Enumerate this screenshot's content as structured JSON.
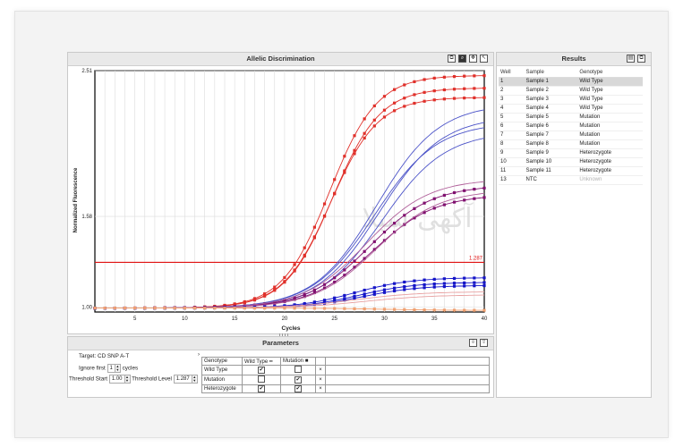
{
  "chart_panel": {
    "title": "Allelic Discrimination"
  },
  "results_panel": {
    "title": "Results",
    "columns": [
      "Well",
      "Sample",
      "Genotype"
    ],
    "rows": [
      {
        "well": "1",
        "sample": "Sample 1",
        "genotype": "Wild Type"
      },
      {
        "well": "2",
        "sample": "Sample 2",
        "genotype": "Wild Type"
      },
      {
        "well": "3",
        "sample": "Sample 3",
        "genotype": "Wild Type"
      },
      {
        "well": "4",
        "sample": "Sample 4",
        "genotype": "Wild Type"
      },
      {
        "well": "5",
        "sample": "Sample 5",
        "genotype": "Mutation"
      },
      {
        "well": "6",
        "sample": "Sample 6",
        "genotype": "Mutation"
      },
      {
        "well": "7",
        "sample": "Sample 7",
        "genotype": "Mutation"
      },
      {
        "well": "8",
        "sample": "Sample 8",
        "genotype": "Mutation"
      },
      {
        "well": "9",
        "sample": "Sample 9",
        "genotype": "Heterozygote"
      },
      {
        "well": "10",
        "sample": "Sample 10",
        "genotype": "Heterozygote"
      },
      {
        "well": "11",
        "sample": "Sample 11",
        "genotype": "Heterozygote"
      },
      {
        "well": "13",
        "sample": "NTC",
        "genotype": "Unknown"
      }
    ]
  },
  "parameters": {
    "title": "Parameters",
    "target_label": "Target:",
    "target_value": "CD SNP A-T",
    "ignore_first_label": "Ignore first",
    "ignore_first_value": "1",
    "cycles_label": "cycles",
    "threshold_start_label": "Threshold Start",
    "threshold_start_value": "1.00",
    "threshold_level_label": "Threshold Level",
    "threshold_level_value": "1.287",
    "genotype_header": "Genotype",
    "wild_type_header": "Wild Type",
    "mutation_header": "Mutation",
    "genotype_rows": [
      {
        "name": "Wild Type",
        "wild": true,
        "mutation": false
      },
      {
        "name": "Mutation",
        "wild": false,
        "mutation": true
      },
      {
        "name": "Heterozygote",
        "wild": true,
        "mutation": true
      }
    ],
    "remove_glyph": "×"
  },
  "watermark": "آکهی سبلا",
  "chart_data": {
    "type": "line",
    "xlabel": "Cycles",
    "ylabel": "Normalized Fluorescence",
    "xlim": [
      1,
      40
    ],
    "ylim": [
      0.97,
      2.51
    ],
    "x_ticks": [
      5,
      10,
      15,
      20,
      25,
      30,
      35,
      40
    ],
    "y_ticks": [
      1.0,
      1.58,
      2.51
    ],
    "y_tick_labels": [
      "1.00",
      "1.58",
      "2.51"
    ],
    "threshold": 1.287,
    "threshold_label": "1.287",
    "grid": true,
    "series": [
      {
        "color": "#e0302a",
        "marker": true,
        "top": 2.48,
        "mid": 24.5,
        "slope": 0.42
      },
      {
        "color": "#e0302a",
        "marker": true,
        "top": 2.4,
        "mid": 24.8,
        "slope": 0.42
      },
      {
        "color": "#e0302a",
        "marker": true,
        "top": 2.34,
        "mid": 24.6,
        "slope": 0.42
      },
      {
        "color": "#4a52c8",
        "marker": false,
        "top": 2.3,
        "mid": 29.2,
        "slope": 0.32
      },
      {
        "color": "#4a52c8",
        "marker": false,
        "top": 2.22,
        "mid": 29.5,
        "slope": 0.32
      },
      {
        "color": "#4a52c8",
        "marker": false,
        "top": 2.18,
        "mid": 29.0,
        "slope": 0.32
      },
      {
        "color": "#4a52c8",
        "marker": false,
        "top": 2.12,
        "mid": 29.8,
        "slope": 0.32
      },
      {
        "color": "#80106f",
        "marker": true,
        "top": 1.78,
        "mid": 28.5,
        "slope": 0.32
      },
      {
        "color": "#80106f",
        "marker": true,
        "top": 1.72,
        "mid": 28.8,
        "slope": 0.32
      },
      {
        "color": "#b0609a",
        "marker": false,
        "top": 1.82,
        "mid": 28.2,
        "slope": 0.32
      },
      {
        "color": "#b0609a",
        "marker": false,
        "top": 1.75,
        "mid": 29.2,
        "slope": 0.32
      },
      {
        "color": "#1414c8",
        "marker": true,
        "top": 1.19,
        "mid": 27.0,
        "slope": 0.35
      },
      {
        "color": "#1414c8",
        "marker": true,
        "top": 1.16,
        "mid": 27.5,
        "slope": 0.35
      },
      {
        "color": "#1414c8",
        "marker": true,
        "top": 1.14,
        "mid": 27.8,
        "slope": 0.35
      },
      {
        "color": "#e8a0a0",
        "marker": false,
        "top": 1.1,
        "mid": 27.0,
        "slope": 0.3
      },
      {
        "color": "#e8a0a0",
        "marker": false,
        "top": 1.08,
        "mid": 28.0,
        "slope": 0.3
      },
      {
        "color": "#f0a070",
        "marker": true,
        "top": 0.98,
        "mid": 30.0,
        "slope": 0.3
      }
    ]
  }
}
